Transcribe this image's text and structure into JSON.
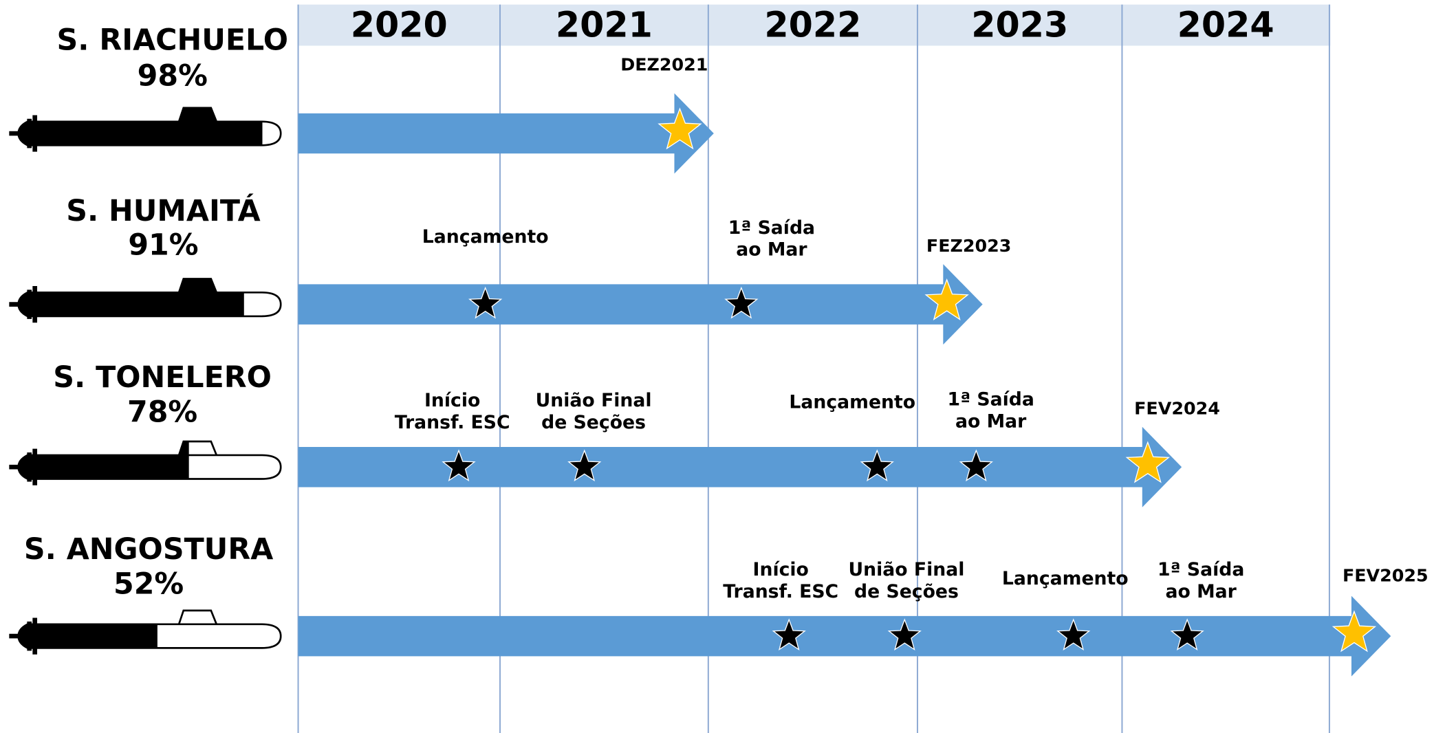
{
  "years": [
    "2020",
    "2021",
    "2022",
    "2023",
    "2024"
  ],
  "rows": [
    {
      "name": "S. RIACHUELO",
      "percent": "98%",
      "milestones": [],
      "end": "DEZ2021"
    },
    {
      "name": "S. HUMAITÁ",
      "percent": "91%",
      "milestones": [
        [
          "Lançamento"
        ],
        [
          "1ª Saída",
          "ao Mar"
        ]
      ],
      "end": "FEZ2023"
    },
    {
      "name": "S. TONELERO",
      "percent": "78%",
      "milestones": [
        [
          "Início",
          "Transf. ESC"
        ],
        [
          "União Final",
          "de Seções"
        ],
        [
          "Lançamento"
        ],
        [
          "1ª Saída",
          "ao Mar"
        ]
      ],
      "end": "FEV2024"
    },
    {
      "name": "S. ANGOSTURA",
      "percent": "52%",
      "milestones": [
        [
          "Início",
          "Transf. ESC"
        ],
        [
          "União Final",
          "de Seções"
        ],
        [
          "Lançamento"
        ],
        [
          "1ª Saída",
          "ao Mar"
        ]
      ],
      "end": "FEV2025"
    }
  ]
}
